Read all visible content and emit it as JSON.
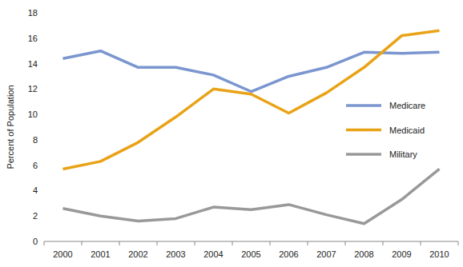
{
  "chart_data": {
    "type": "line",
    "y_label": "Percent of Population",
    "categories": [
      "2000",
      "2001",
      "2002",
      "2003",
      "2004",
      "2005",
      "2006",
      "2007",
      "2008",
      "2009",
      "2010"
    ],
    "series": [
      {
        "name": "Medicare",
        "color": "#7b96cf",
        "values": [
          14.4,
          15.0,
          13.7,
          13.7,
          13.1,
          11.8,
          13.0,
          13.7,
          14.9,
          14.8,
          14.9
        ]
      },
      {
        "name": "Medicaid",
        "color": "#e8a317",
        "values": [
          5.7,
          6.3,
          7.8,
          9.8,
          12.0,
          11.6,
          10.1,
          11.7,
          13.7,
          16.2,
          16.6
        ]
      },
      {
        "name": "Military",
        "color": "#999999",
        "values": [
          2.6,
          2.0,
          1.6,
          1.8,
          2.7,
          2.5,
          2.9,
          2.1,
          1.4,
          3.3,
          5.7
        ]
      }
    ],
    "ylim": [
      0,
      18
    ],
    "yticks": [
      0,
      2,
      4,
      6,
      8,
      10,
      12,
      14,
      16,
      18
    ],
    "grid": false,
    "legend": "right"
  }
}
